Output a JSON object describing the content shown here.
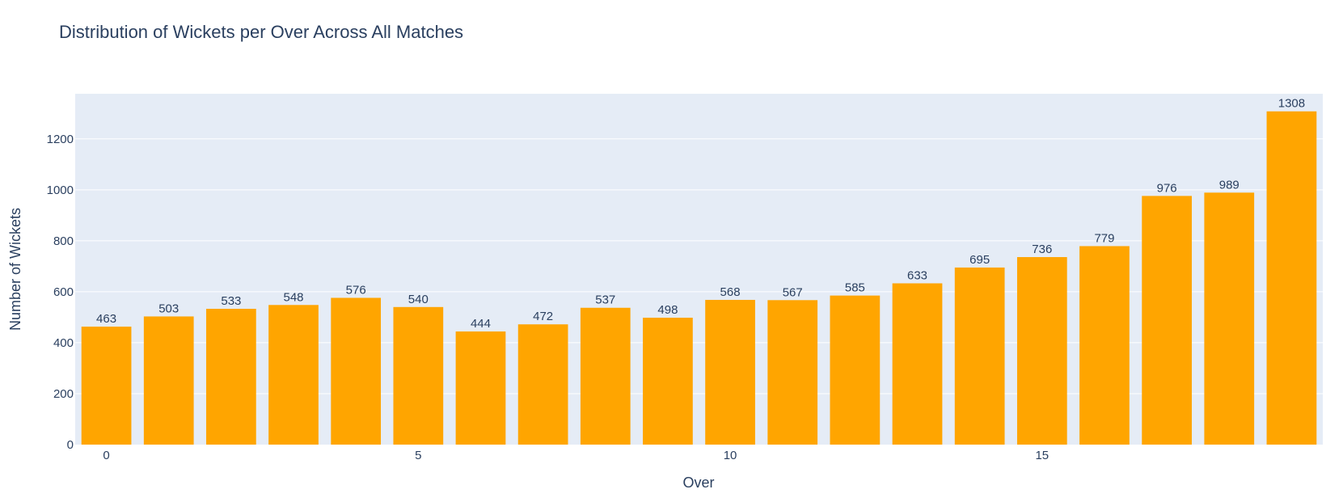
{
  "chart_data": {
    "type": "bar",
    "title": "Distribution of Wickets per Over Across All Matches",
    "xlabel": "Over",
    "ylabel": "Number of Wickets",
    "categories": [
      0,
      1,
      2,
      3,
      4,
      5,
      6,
      7,
      8,
      9,
      10,
      11,
      12,
      13,
      14,
      15,
      16,
      17,
      18,
      19
    ],
    "values": [
      463,
      503,
      533,
      548,
      576,
      540,
      444,
      472,
      537,
      498,
      568,
      567,
      585,
      633,
      695,
      736,
      779,
      976,
      989,
      1308
    ],
    "x_ticks": [
      0,
      5,
      10,
      15
    ],
    "y_ticks": [
      0,
      200,
      400,
      600,
      800,
      1000,
      1200
    ],
    "ylim": [
      0,
      1377
    ],
    "grid": true,
    "legend": "none",
    "colors": {
      "bar": "#FFA500",
      "plot_background": "#E5ECF6",
      "grid": "#ffffff",
      "text": "#2a3f5f"
    }
  }
}
